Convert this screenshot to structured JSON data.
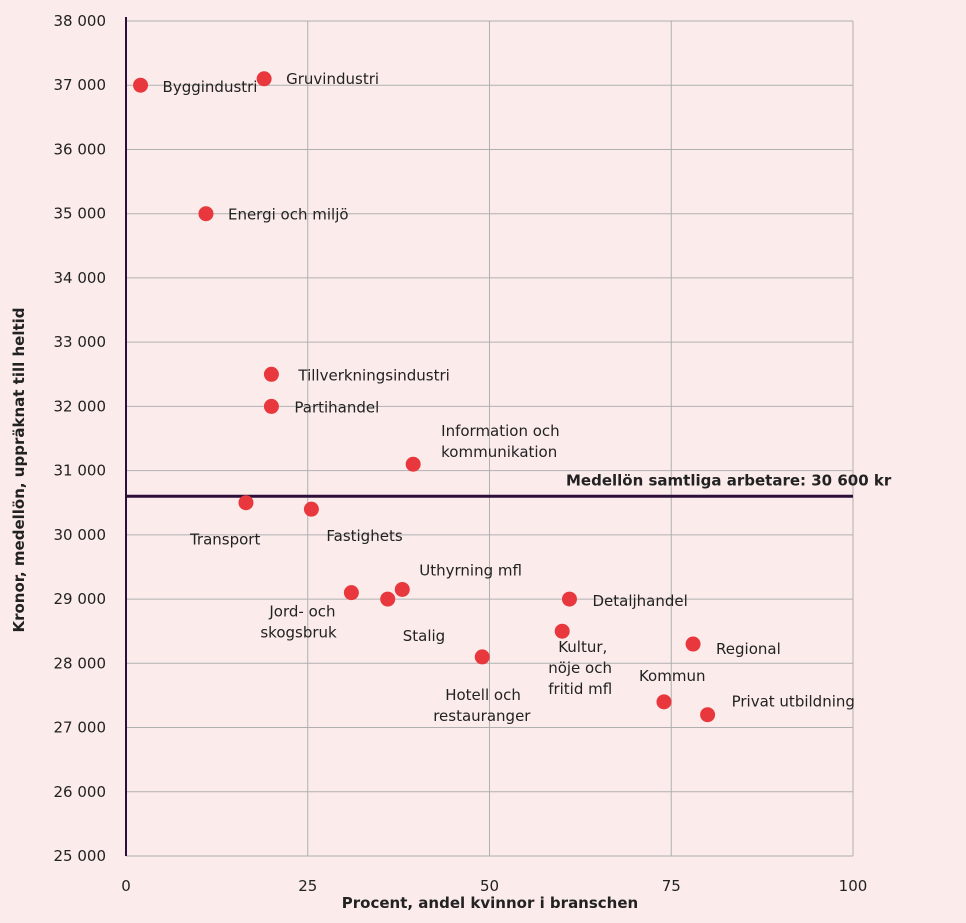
{
  "chart_data": {
    "type": "scatter",
    "xlabel": "Procent, andel kvinnor i branschen",
    "ylabel": "Kronor, medellön, uppräknat till heltid",
    "xlim": [
      0,
      100
    ],
    "ylim": [
      25000,
      38000
    ],
    "x_ticks": [
      0,
      25,
      50,
      75,
      100
    ],
    "y_ticks": [
      25000,
      26000,
      27000,
      28000,
      29000,
      30000,
      31000,
      32000,
      33000,
      34000,
      35000,
      36000,
      37000,
      38000
    ],
    "x_tick_labels": [
      "0",
      "25",
      "50",
      "75",
      "100"
    ],
    "y_tick_labels": [
      "25 000",
      "26 000",
      "27 000",
      "28 000",
      "29 000",
      "30 000",
      "31 000",
      "32 000",
      "33 000",
      "34 000",
      "35 000",
      "36 000",
      "37 000",
      "38 000"
    ],
    "grid": true,
    "marker_color": "#e8383d",
    "points": [
      {
        "label": "Byggindustri",
        "x": 2,
        "y": 37000
      },
      {
        "label": "Gruvindustri",
        "x": 19,
        "y": 37100
      },
      {
        "label": "Energi och miljö",
        "x": 11,
        "y": 35000
      },
      {
        "label": "Tillverkningsindustri",
        "x": 20,
        "y": 32500
      },
      {
        "label": "Partihandel",
        "x": 20,
        "y": 32000
      },
      {
        "label": "Information och kommunikation",
        "x": 39.5,
        "y": 31100
      },
      {
        "label": "Transport",
        "x": 16.5,
        "y": 30500
      },
      {
        "label": "Fastighets",
        "x": 25.5,
        "y": 30400
      },
      {
        "label": "Jord- och skogsbruk",
        "x": 31,
        "y": 29100
      },
      {
        "label": "Stalig",
        "x": 36,
        "y": 29000
      },
      {
        "label": "Uthyrning mfl",
        "x": 38,
        "y": 29150
      },
      {
        "label": "Hotell och restauranger",
        "x": 49,
        "y": 28100
      },
      {
        "label": "Detaljhandel",
        "x": 61,
        "y": 29000
      },
      {
        "label": "Kultur, nöje och fritid mfl",
        "x": 60,
        "y": 28500
      },
      {
        "label": "Regional",
        "x": 78,
        "y": 28300
      },
      {
        "label": "Kommun",
        "x": 74,
        "y": 27400
      },
      {
        "label": "Privat utbildning",
        "x": 80,
        "y": 27200
      }
    ],
    "reference_line": {
      "value": 30600,
      "label": "Medellön samtliga arbetare: 30 600 kr",
      "color": "#2e0f3a"
    },
    "grid_color": "#b0b0b0",
    "axis_color": "#2e0f3a"
  }
}
